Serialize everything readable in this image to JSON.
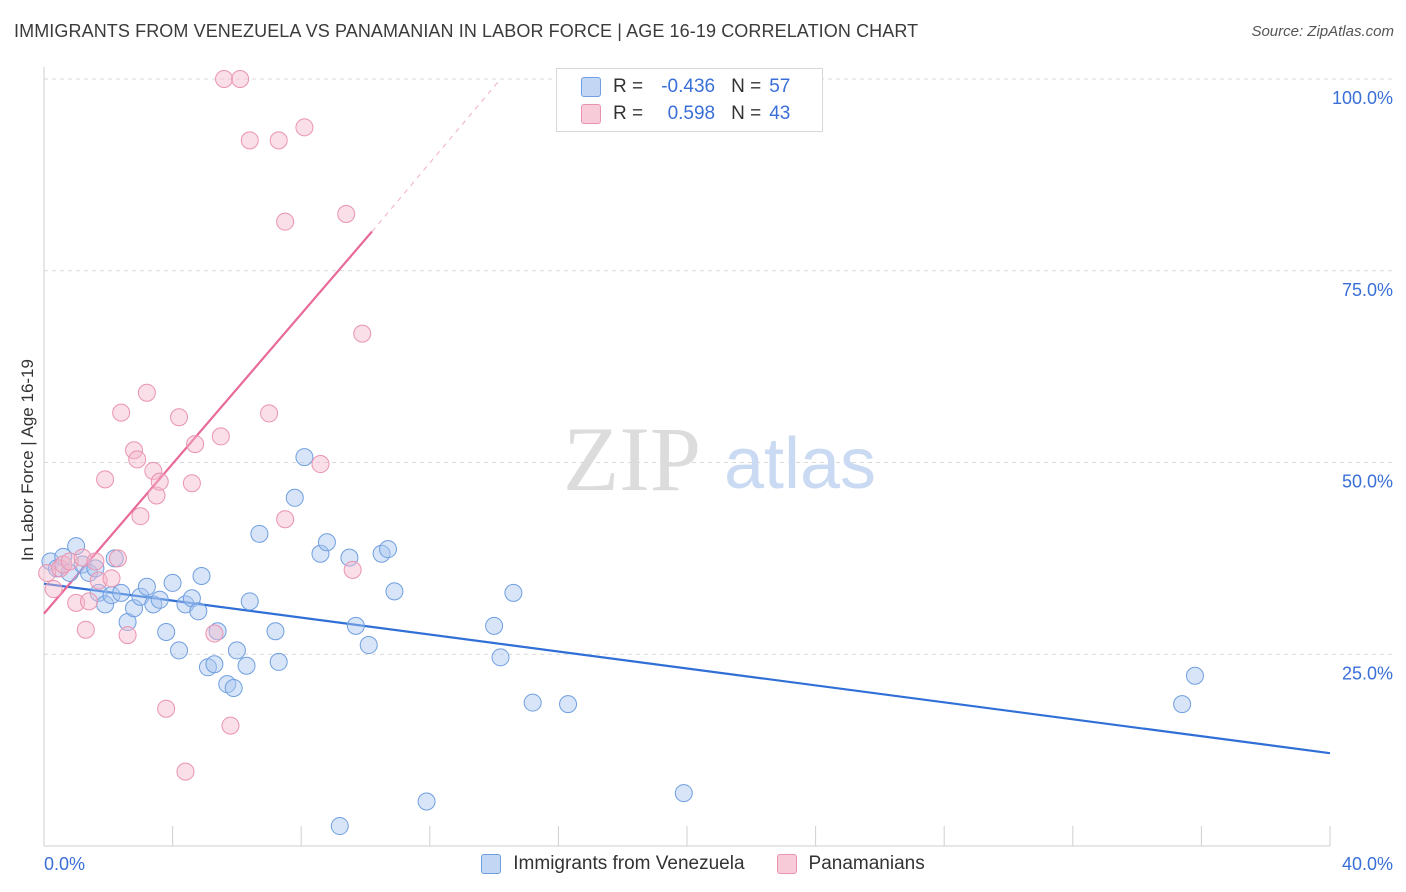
{
  "title": "IMMIGRANTS FROM VENEZUELA VS PANAMANIAN IN LABOR FORCE | AGE 16-19 CORRELATION CHART",
  "source": "Source: ZipAtlas.com",
  "watermark": {
    "zip": "ZIP",
    "atlas": "atlas"
  },
  "colors": {
    "blue_fill": "#a8c6f0",
    "blue_stroke": "#6f9fe0",
    "blue_line": "#2f6fd6",
    "pink_fill": "#f4b8cb",
    "pink_stroke": "#ea93b0",
    "pink_line": "#e8699a",
    "tick_label": "#3a6fd8",
    "grid": "#d9d9d9"
  },
  "legend_top": {
    "rows": [
      {
        "swatch": "blue",
        "r_label": "R =",
        "r_value": "-0.436",
        "n_label": "N =",
        "n_value": "57"
      },
      {
        "swatch": "pink",
        "r_label": "R =",
        "r_value": "0.598",
        "n_label": "N =",
        "n_value": "43"
      }
    ]
  },
  "legend_bottom": [
    {
      "swatch": "blue",
      "label": "Immigrants from Venezuela"
    },
    {
      "swatch": "pink",
      "label": "Panamanians"
    }
  ],
  "chart_data": {
    "type": "scatter",
    "title": "IMMIGRANTS FROM VENEZUELA VS PANAMANIAN IN LABOR FORCE | AGE 16-19 CORRELATION CHART",
    "xlabel": "",
    "ylabel": "In Labor Force | Age 16-19",
    "xlim": [
      0,
      40
    ],
    "ylim": [
      0,
      100
    ],
    "x_tick_labels": [
      {
        "value": 0,
        "label": "0.0%"
      },
      {
        "value": 40,
        "label": "40.0%"
      }
    ],
    "y_tick_labels": [
      {
        "value": 25,
        "label": "25.0%"
      },
      {
        "value": 50,
        "label": "50.0%"
      },
      {
        "value": 75,
        "label": "75.0%"
      },
      {
        "value": 100,
        "label": "100.0%"
      }
    ],
    "grid": true,
    "series": [
      {
        "name": "Immigrants from Venezuela",
        "color": "blue",
        "r": -0.436,
        "n": 57,
        "trend": {
          "x": [
            0,
            40
          ],
          "y": [
            34.2,
            12.1
          ]
        },
        "points": [
          [
            0.2,
            37.1
          ],
          [
            0.4,
            36.2
          ],
          [
            0.6,
            37.7
          ],
          [
            0.8,
            35.6
          ],
          [
            1.0,
            39.1
          ],
          [
            1.2,
            36.7
          ],
          [
            1.4,
            35.6
          ],
          [
            1.6,
            36.2
          ],
          [
            1.7,
            33.0
          ],
          [
            1.9,
            31.5
          ],
          [
            2.1,
            32.7
          ],
          [
            2.2,
            37.5
          ],
          [
            2.4,
            33.0
          ],
          [
            2.6,
            29.2
          ],
          [
            2.8,
            31.0
          ],
          [
            3.0,
            32.5
          ],
          [
            3.2,
            33.8
          ],
          [
            3.4,
            31.5
          ],
          [
            3.6,
            32.1
          ],
          [
            3.8,
            27.9
          ],
          [
            4.0,
            34.3
          ],
          [
            4.2,
            25.5
          ],
          [
            4.4,
            31.5
          ],
          [
            4.6,
            32.3
          ],
          [
            4.8,
            30.6
          ],
          [
            4.9,
            35.2
          ],
          [
            5.1,
            23.3
          ],
          [
            5.3,
            23.7
          ],
          [
            5.4,
            28.0
          ],
          [
            5.7,
            21.1
          ],
          [
            5.9,
            20.6
          ],
          [
            6.0,
            25.5
          ],
          [
            6.3,
            23.5
          ],
          [
            6.4,
            31.9
          ],
          [
            6.7,
            40.7
          ],
          [
            7.2,
            28.0
          ],
          [
            7.3,
            24.0
          ],
          [
            7.8,
            45.4
          ],
          [
            8.1,
            50.7
          ],
          [
            8.6,
            38.1
          ],
          [
            8.8,
            39.6
          ],
          [
            9.2,
            2.6
          ],
          [
            9.5,
            37.6
          ],
          [
            9.7,
            28.7
          ],
          [
            10.1,
            26.2
          ],
          [
            10.5,
            38.1
          ],
          [
            10.7,
            38.7
          ],
          [
            10.9,
            33.2
          ],
          [
            11.9,
            5.8
          ],
          [
            14.0,
            28.7
          ],
          [
            14.2,
            24.6
          ],
          [
            14.6,
            33.0
          ],
          [
            15.2,
            18.7
          ],
          [
            16.3,
            18.5
          ],
          [
            19.9,
            6.9
          ],
          [
            35.4,
            18.5
          ],
          [
            35.8,
            22.2
          ]
        ]
      },
      {
        "name": "Panamanians",
        "color": "pink",
        "r": 0.598,
        "n": 43,
        "trend": {
          "x": [
            0,
            10.2
          ],
          "y": [
            30.3,
            80.1
          ]
        },
        "trend_extension": {
          "x": [
            10.2,
            14.2
          ],
          "y": [
            80.1,
            100
          ]
        },
        "points": [
          [
            0.1,
            35.6
          ],
          [
            0.3,
            33.5
          ],
          [
            0.5,
            36.2
          ],
          [
            0.6,
            36.7
          ],
          [
            0.8,
            37.1
          ],
          [
            1.0,
            31.7
          ],
          [
            1.2,
            37.6
          ],
          [
            1.3,
            28.2
          ],
          [
            1.4,
            31.9
          ],
          [
            1.6,
            37.1
          ],
          [
            1.7,
            34.6
          ],
          [
            1.9,
            47.8
          ],
          [
            2.1,
            34.9
          ],
          [
            2.3,
            37.5
          ],
          [
            2.4,
            56.5
          ],
          [
            2.6,
            27.5
          ],
          [
            2.8,
            51.6
          ],
          [
            2.9,
            50.4
          ],
          [
            3.0,
            43.0
          ],
          [
            3.2,
            59.1
          ],
          [
            3.4,
            48.9
          ],
          [
            3.5,
            45.7
          ],
          [
            3.6,
            47.5
          ],
          [
            3.8,
            17.9
          ],
          [
            4.2,
            55.9
          ],
          [
            4.4,
            9.7
          ],
          [
            4.6,
            47.3
          ],
          [
            4.7,
            52.4
          ],
          [
            5.3,
            27.7
          ],
          [
            5.5,
            53.4
          ],
          [
            5.6,
            100.0
          ],
          [
            5.8,
            15.7
          ],
          [
            6.1,
            100.0
          ],
          [
            6.4,
            92.0
          ],
          [
            7.0,
            56.4
          ],
          [
            7.3,
            92.0
          ],
          [
            7.5,
            81.4
          ],
          [
            7.5,
            42.6
          ],
          [
            8.1,
            93.7
          ],
          [
            8.6,
            49.8
          ],
          [
            9.4,
            82.4
          ],
          [
            9.9,
            66.8
          ],
          [
            9.6,
            36.0
          ]
        ]
      }
    ]
  }
}
